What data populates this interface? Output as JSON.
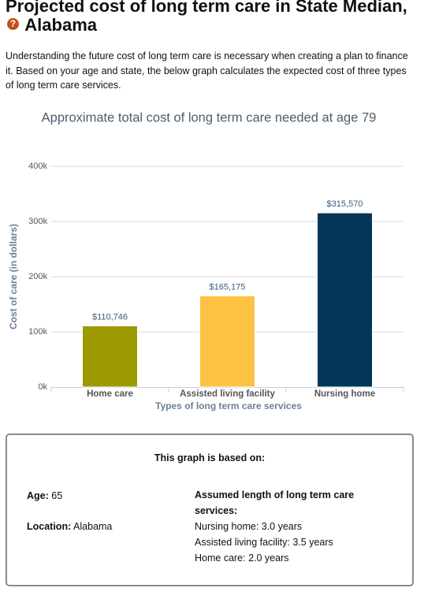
{
  "header": {
    "title_line": "Projected cost of long term care in State Median,",
    "help_icon": "?",
    "state": "Alabama"
  },
  "intro": "Understanding the future cost of long term care is necessary when creating a plan to finance it. Based on your age and state, the below graph calculates the expected cost of three types of long term care services.",
  "chart_data": {
    "type": "bar",
    "title": "Approximate total cost of long term care needed at age 79",
    "categories": [
      "Home care",
      "Assisted living facility",
      "Nursing home"
    ],
    "values": [
      110746,
      165175,
      315570
    ],
    "value_labels": [
      "$110,746",
      "$165,175",
      "$315,570"
    ],
    "colors": [
      "#9c9a00",
      "#fdc143",
      "#043657"
    ],
    "x_label": "Types of long term care services",
    "y_label": "Cost of care (in dollars)",
    "ylim": [
      0,
      400000
    ],
    "yticks": [
      {
        "value": 0,
        "label": "0k"
      },
      {
        "value": 100000,
        "label": "100k"
      },
      {
        "value": 200000,
        "label": "200k"
      },
      {
        "value": 300000,
        "label": "300k"
      },
      {
        "value": 400000,
        "label": "400k"
      }
    ],
    "grid": true
  },
  "info": {
    "heading": "This graph is based on:",
    "age_label": "Age:",
    "age": "65",
    "location_label": "Location:",
    "location": "Alabama",
    "length_heading": "Assumed length of long term care services:",
    "lengths": [
      "Nursing home: 3.0 years",
      "Assisted living facility: 3.5 years",
      "Home care: 2.0 years"
    ]
  }
}
